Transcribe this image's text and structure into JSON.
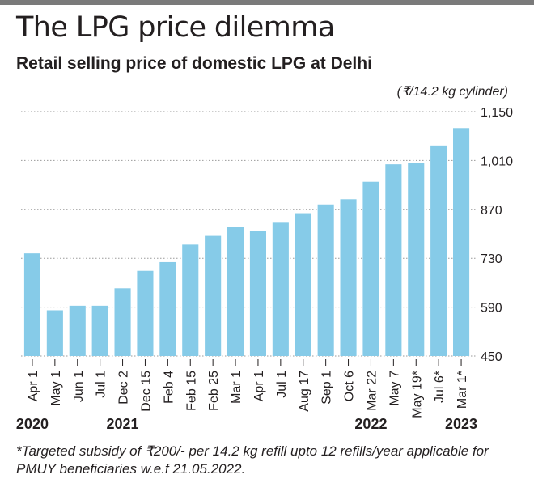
{
  "header": {
    "title": "The LPG price dilemma",
    "subtitle": "Retail selling price of domestic LPG at Delhi"
  },
  "chart_data": {
    "type": "bar",
    "unit_label": "(₹/14.2 kg cylinder)",
    "categories": [
      "Apr 1",
      "May 1",
      "Jun 1",
      "Jul 1",
      "Dec 2",
      "Dec 15",
      "Feb 4",
      "Feb 15",
      "Feb 25",
      "Mar 1",
      "Apr 1",
      "Jul 1",
      "Aug 17",
      "Sep 1",
      "Oct 6",
      "Mar 22",
      "May 7",
      "May 19*",
      "Jul 6*",
      "Mar 1*"
    ],
    "values": [
      744,
      581,
      594,
      594,
      644,
      694,
      719,
      769,
      794,
      819,
      809,
      834,
      859,
      884,
      899,
      949,
      999,
      1003,
      1053,
      1103
    ],
    "ylim": [
      450,
      1150
    ],
    "yticks": [
      "1,150",
      "1,010",
      "870",
      "730",
      "590",
      "450"
    ],
    "year_labels": [
      "2020",
      "2021",
      "2022",
      "2023"
    ],
    "bar_color": "#86cbe8",
    "grid": "dotted horizontal",
    "axis_position": "right"
  },
  "footnote": {
    "line1": "*Targeted subsidy of ₹200/- per 14.2 kg refill upto 12 refills/year applicable  for",
    "line2": "PMUY beneficiaries w.e.f 21.05.2022."
  }
}
